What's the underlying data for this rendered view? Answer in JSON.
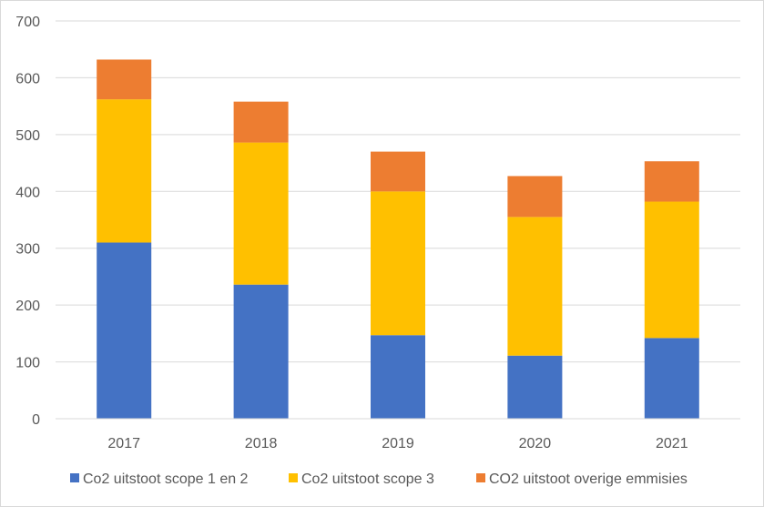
{
  "chart_data": {
    "type": "bar",
    "stacked": true,
    "title": "",
    "xlabel": "",
    "ylabel": "",
    "categories": [
      "2017",
      "2018",
      "2019",
      "2020",
      "2021"
    ],
    "ylim": [
      0,
      700
    ],
    "yticks": [
      0,
      100,
      200,
      300,
      400,
      500,
      600,
      700
    ],
    "yticks_labels": [
      "0",
      "100",
      "200",
      "300",
      "400",
      "500",
      "600",
      "700"
    ],
    "grid": true,
    "legend_position": "bottom",
    "series": [
      {
        "name": "Co2 uitstoot scope 1 en 2",
        "color": "#4472c4",
        "values": [
          310,
          236,
          147,
          111,
          142
        ]
      },
      {
        "name": "Co2 uitstoot scope 3",
        "color": "#ffc000",
        "values": [
          252,
          250,
          253,
          244,
          240
        ]
      },
      {
        "name": "CO2 uitstoot overige emmisies",
        "color": "#ed7d31",
        "values": [
          70,
          72,
          70,
          72,
          71
        ]
      }
    ]
  }
}
